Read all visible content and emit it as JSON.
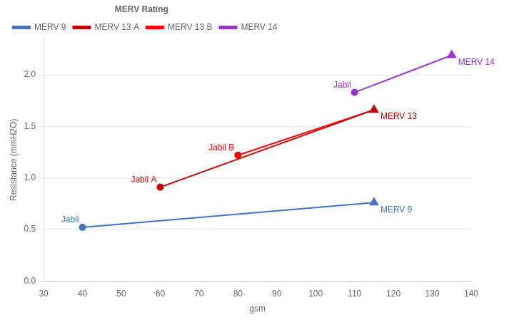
{
  "chart_data": {
    "type": "line",
    "xlabel": "gsm",
    "ylabel": "Resistance (mmH2O)",
    "xlim": [
      30,
      140
    ],
    "ylim": [
      0,
      2.35
    ],
    "xticks": [
      30,
      40,
      50,
      60,
      70,
      80,
      90,
      100,
      110,
      120,
      130,
      140
    ],
    "yticks": [
      {
        "value": 0,
        "label": "0.0"
      },
      0.5,
      {
        "value": 1.0,
        "label": "1.0"
      },
      1.5,
      {
        "value": 2.0,
        "label": "2.0"
      }
    ],
    "grid": "y",
    "legend": "upper left",
    "legend_title": "MERV Rating",
    "series": [
      {
        "name": "MERV 9",
        "color": "#4472C4",
        "x": [
          40,
          115
        ],
        "values": [
          0.52,
          0.76
        ],
        "marker": [
          "circle",
          "triangle"
        ]
      },
      {
        "name": "MERV 13 A",
        "color": "#C00000",
        "x": [
          60,
          115
        ],
        "values": [
          0.91,
          1.66
        ],
        "marker": [
          "circle",
          "triangle"
        ]
      },
      {
        "name": "MERV 13 B",
        "color": "#FF0000",
        "x": [
          80,
          115
        ],
        "values": [
          1.22,
          1.66
        ],
        "marker": [
          "circle",
          null
        ]
      },
      {
        "name": "MERV 14",
        "color": "#9933CC",
        "x": [
          110,
          135
        ],
        "values": [
          1.83,
          2.19
        ],
        "marker": [
          "circle",
          "triangle"
        ]
      }
    ],
    "annotations": [
      {
        "text": "Jabil",
        "x": 40,
        "y": 0.52,
        "color": "#4472C4"
      },
      {
        "text": "MERV 9",
        "x": 115,
        "y": 0.76,
        "color": "#4472C4"
      },
      {
        "text": "Jabil A",
        "x": 60,
        "y": 0.91,
        "color": "#C00000"
      },
      {
        "text": "MERV 13",
        "x": 115,
        "y": 1.66,
        "color": "#C00000"
      },
      {
        "text": "Jabil B",
        "x": 80,
        "y": 1.22,
        "color": "#FF0000"
      },
      {
        "text": "Jabil",
        "x": 110,
        "y": 1.83,
        "color": "#9933CC"
      },
      {
        "text": "MERV 14",
        "x": 135,
        "y": 2.19,
        "color": "#9933CC"
      }
    ]
  }
}
